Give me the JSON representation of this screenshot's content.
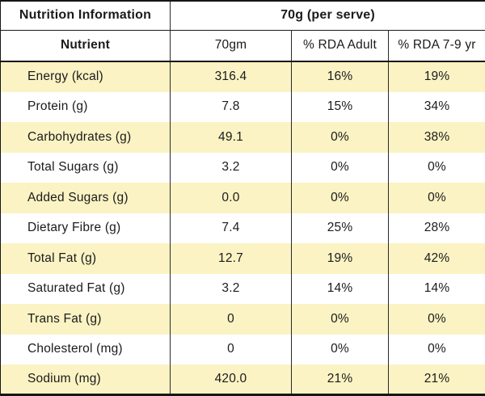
{
  "chart_data": {
    "type": "table",
    "title": "Nutrition Information",
    "serving": "70g (per serve)",
    "columns": [
      "Nutrient",
      "70gm",
      "% RDA Adult",
      "% RDA 7-9 yr"
    ],
    "rows": [
      {
        "nutrient": "Energy (kcal)",
        "amount": "316.4",
        "rda_adult": "16%",
        "rda_7_9": "19%"
      },
      {
        "nutrient": "Protein (g)",
        "amount": "7.8",
        "rda_adult": "15%",
        "rda_7_9": "34%"
      },
      {
        "nutrient": "Carbohydrates (g)",
        "amount": "49.1",
        "rda_adult": "0%",
        "rda_7_9": "38%"
      },
      {
        "nutrient": "Total Sugars (g)",
        "amount": "3.2",
        "rda_adult": "0%",
        "rda_7_9": "0%"
      },
      {
        "nutrient": "Added Sugars (g)",
        "amount": "0.0",
        "rda_adult": "0%",
        "rda_7_9": "0%"
      },
      {
        "nutrient": "Dietary Fibre (g)",
        "amount": "7.4",
        "rda_adult": "25%",
        "rda_7_9": "28%"
      },
      {
        "nutrient": "Total Fat (g)",
        "amount": "12.7",
        "rda_adult": "19%",
        "rda_7_9": "42%"
      },
      {
        "nutrient": "Saturated Fat (g)",
        "amount": "3.2",
        "rda_adult": "14%",
        "rda_7_9": "14%"
      },
      {
        "nutrient": "Trans Fat (g)",
        "amount": "0",
        "rda_adult": "0%",
        "rda_7_9": "0%"
      },
      {
        "nutrient": "Cholesterol (mg)",
        "amount": "0",
        "rda_adult": "0%",
        "rda_7_9": "0%"
      },
      {
        "nutrient": "Sodium (mg)",
        "amount": "420.0",
        "rda_adult": "21%",
        "rda_7_9": "21%"
      }
    ],
    "layout_hints": {
      "row_striping": "alternating, starting highlighted",
      "serving_header_spans_columns": [
        2,
        3,
        4
      ]
    }
  },
  "colors": {
    "row_highlight": "#FBF3C4",
    "row_plain": "#FFFFFF",
    "border": "#161616",
    "text": "#1B1B1B"
  }
}
